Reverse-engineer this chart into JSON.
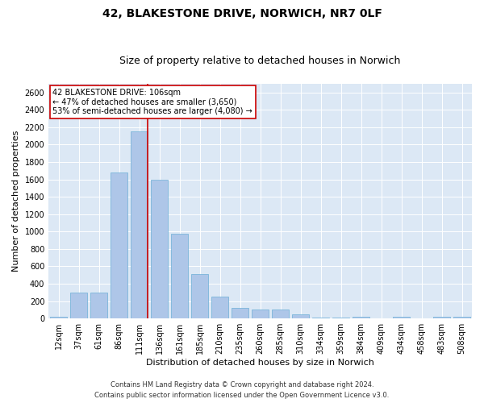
{
  "title_line1": "42, BLAKESTONE DRIVE, NORWICH, NR7 0LF",
  "title_line2": "Size of property relative to detached houses in Norwich",
  "xlabel": "Distribution of detached houses by size in Norwich",
  "ylabel": "Number of detached properties",
  "categories": [
    "12sqm",
    "37sqm",
    "61sqm",
    "86sqm",
    "111sqm",
    "136sqm",
    "161sqm",
    "185sqm",
    "210sqm",
    "235sqm",
    "260sqm",
    "285sqm",
    "310sqm",
    "334sqm",
    "359sqm",
    "384sqm",
    "409sqm",
    "434sqm",
    "458sqm",
    "483sqm",
    "508sqm"
  ],
  "values": [
    20,
    300,
    300,
    1680,
    2150,
    1600,
    975,
    510,
    250,
    125,
    100,
    100,
    45,
    15,
    10,
    20,
    5,
    20,
    5,
    20,
    20
  ],
  "bar_color": "#aec6e8",
  "bar_edge_color": "#6baed6",
  "vline_x_index": 4,
  "vline_color": "#cc0000",
  "annotation_text": "42 BLAKESTONE DRIVE: 106sqm\n← 47% of detached houses are smaller (3,650)\n53% of semi-detached houses are larger (4,080) →",
  "annotation_box_color": "#ffffff",
  "annotation_box_edge": "#cc0000",
  "ylim": [
    0,
    2700
  ],
  "yticks": [
    0,
    200,
    400,
    600,
    800,
    1000,
    1200,
    1400,
    1600,
    1800,
    2000,
    2200,
    2400,
    2600
  ],
  "footer_line1": "Contains HM Land Registry data © Crown copyright and database right 2024.",
  "footer_line2": "Contains public sector information licensed under the Open Government Licence v3.0.",
  "background_color": "#dce8f5",
  "title_fontsize": 10,
  "subtitle_fontsize": 9,
  "tick_fontsize": 7,
  "ylabel_fontsize": 8,
  "xlabel_fontsize": 8,
  "annotation_fontsize": 7,
  "footer_fontsize": 6
}
